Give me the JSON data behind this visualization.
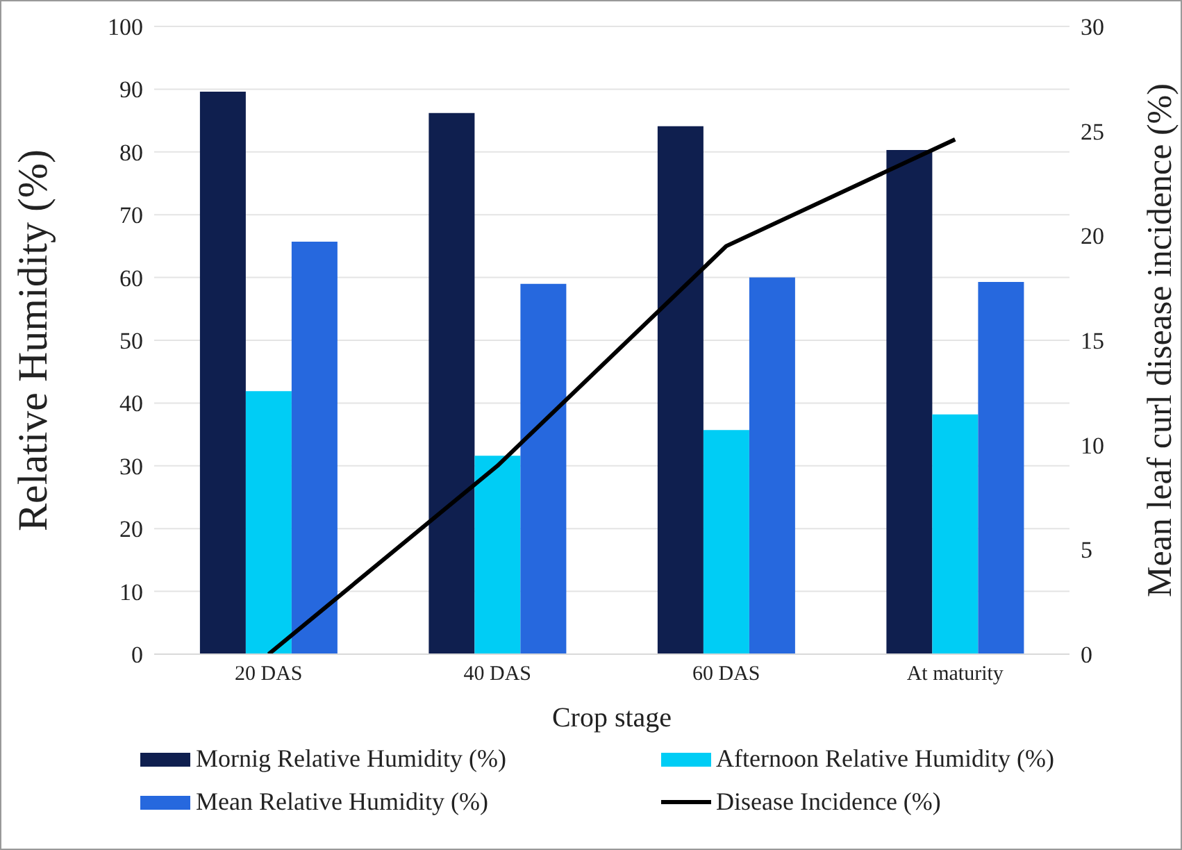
{
  "chart_data": {
    "type": "bar",
    "xlabel": "Crop stage",
    "ylabel": "Relative Humidity (%)",
    "y2label": "Mean leaf curl disease incidence (%)",
    "categories": [
      "20 DAS",
      "40 DAS",
      "60 DAS",
      "At maturity"
    ],
    "series": [
      {
        "name": "Mornig Relative Humidity (%)",
        "color": "#0f1f4f",
        "values": [
          89.6,
          86.2,
          84.1,
          80.3
        ]
      },
      {
        "name": "Afternoon Relative Humidity (%)",
        "color": "#00cdf5",
        "values": [
          41.9,
          31.6,
          35.7,
          38.2
        ]
      },
      {
        "name": "Mean Relative Humidity (%)",
        "color": "#2668de",
        "values": [
          65.7,
          59.0,
          60.0,
          59.3
        ]
      },
      {
        "name": "Disease Incidence (%)",
        "type": "line",
        "axis": "y2",
        "color": "#000000",
        "values": [
          0,
          9.0,
          19.5,
          24.6
        ]
      }
    ],
    "ylim": [
      0,
      100
    ],
    "yticks": [
      0,
      10,
      20,
      30,
      40,
      50,
      60,
      70,
      80,
      90,
      100
    ],
    "y2lim": [
      0,
      30
    ],
    "y2ticks": [
      0,
      5,
      10,
      15,
      20,
      25,
      30
    ],
    "grid": "y",
    "legend": "bottom",
    "marker": "none",
    "line_style": "solid"
  }
}
